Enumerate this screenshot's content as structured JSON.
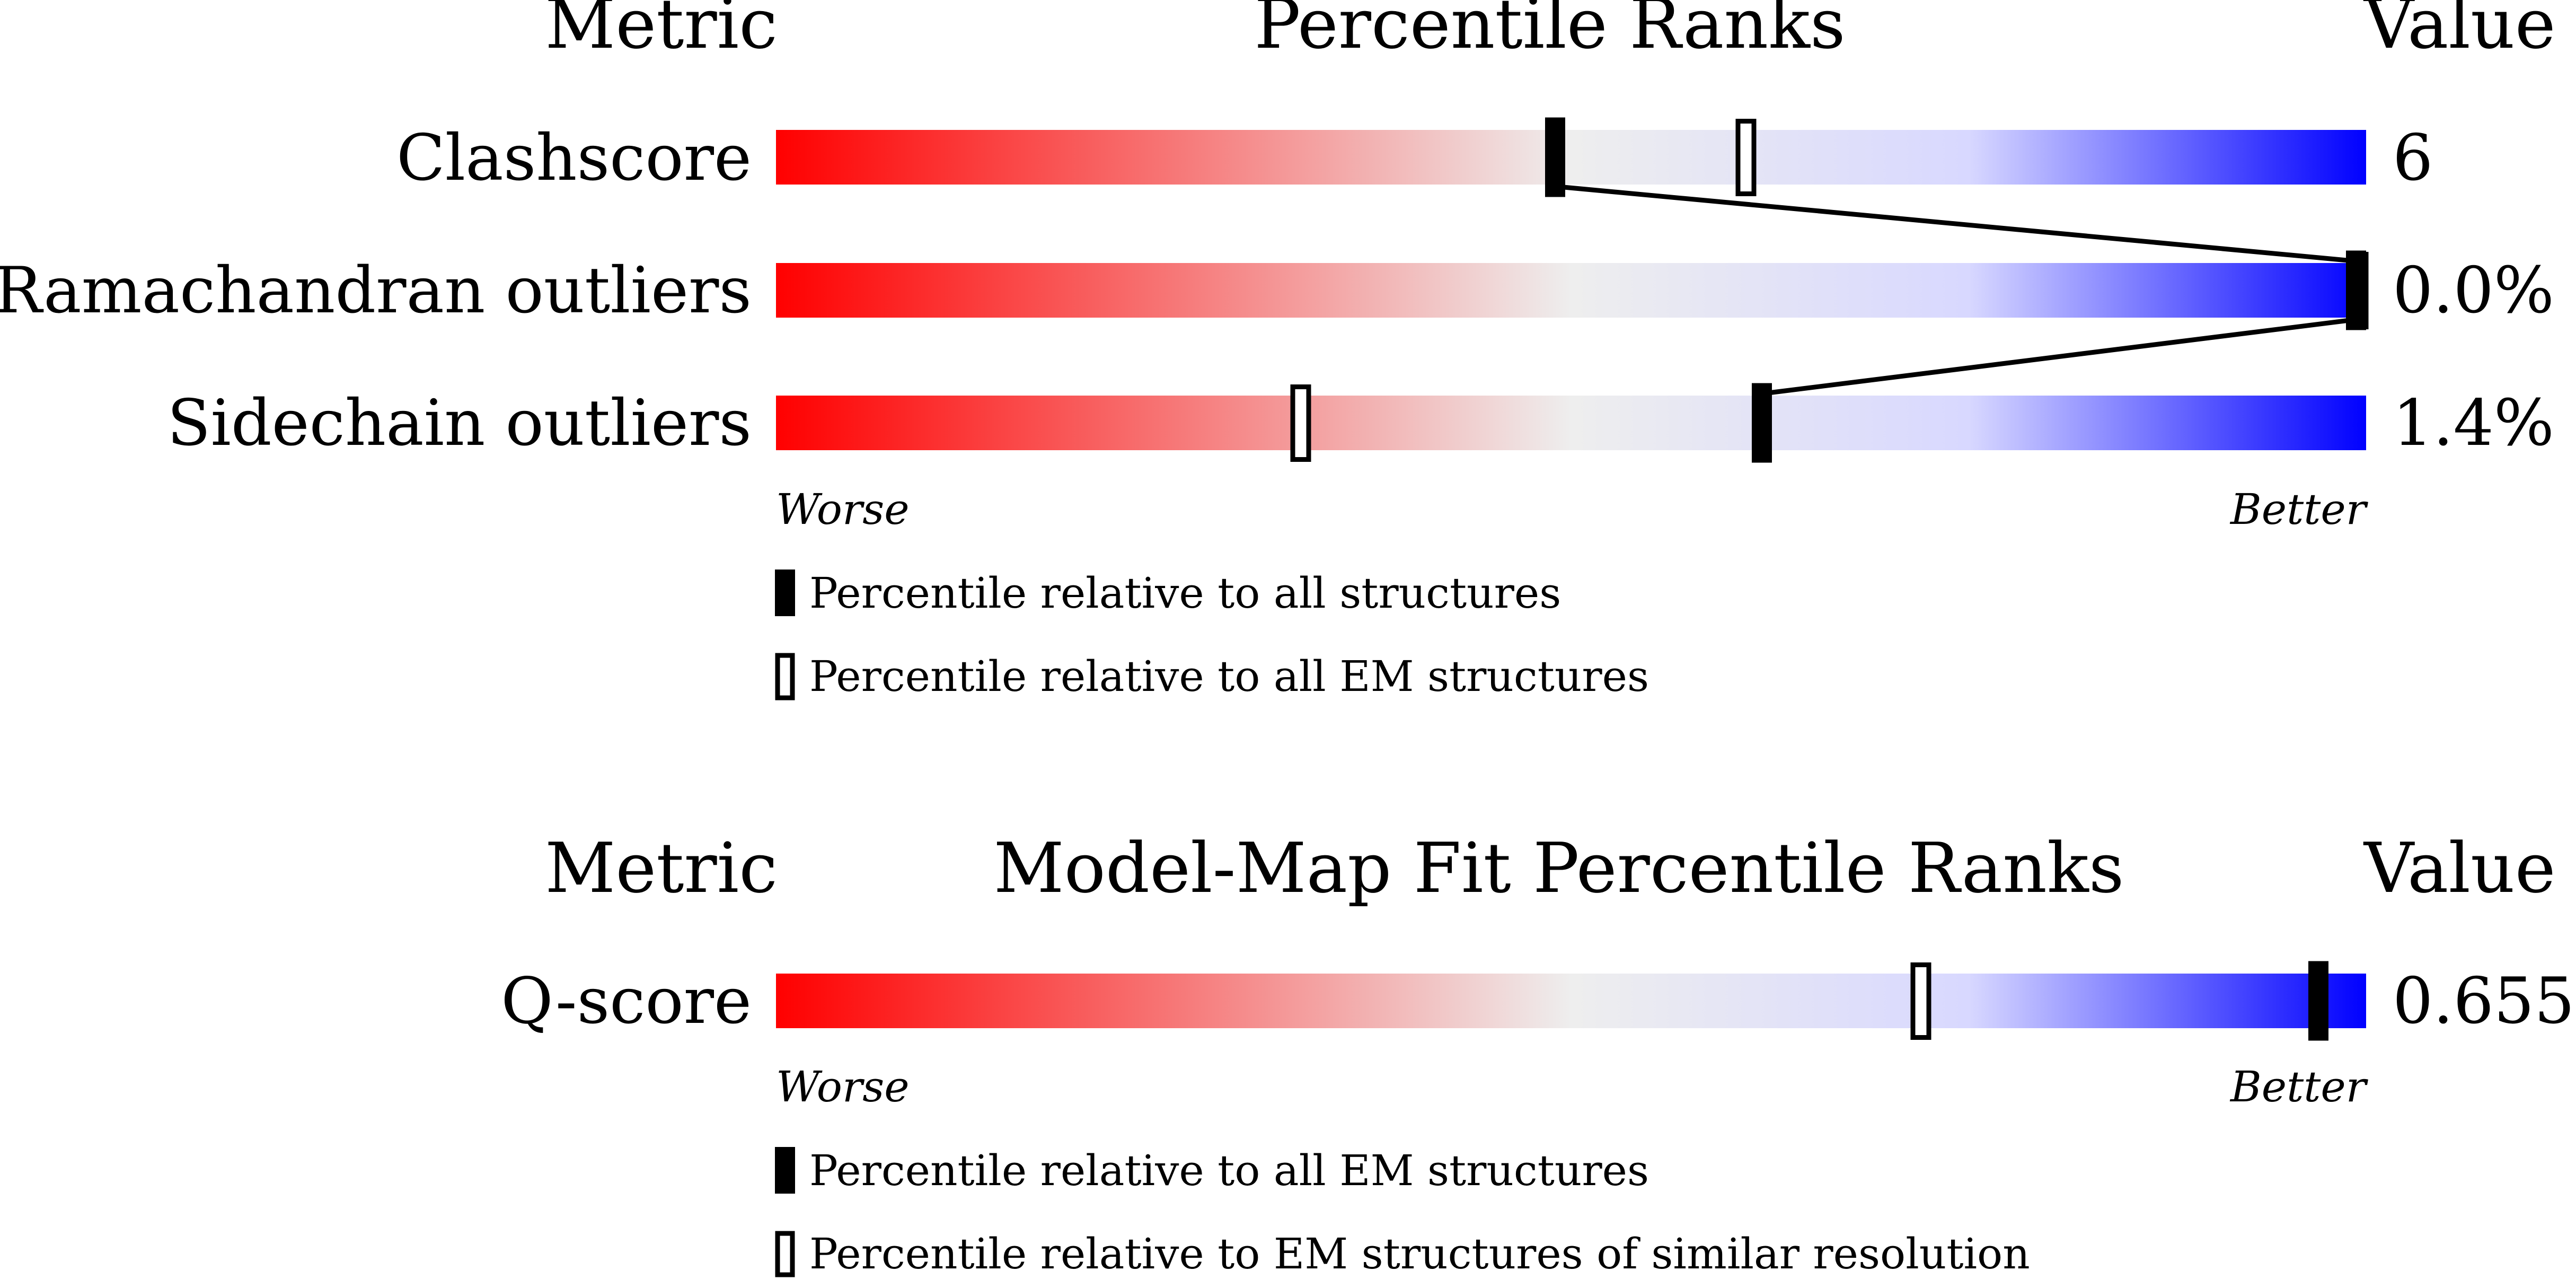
{
  "chart_data": [
    {
      "type": "bar",
      "title": "Percentile Ranks",
      "metric_header": "Metric",
      "value_header": "Value",
      "range": [
        0,
        100
      ],
      "worse_label": "Worse",
      "better_label": "Better",
      "rows": [
        {
          "metric": "Clashscore",
          "value": "6",
          "percentile": 49,
          "percentile_em": 61
        },
        {
          "metric": "Ramachandran outliers",
          "value": "0.0%",
          "percentile": 100,
          "percentile_em": 100
        },
        {
          "metric": "Sidechain outliers",
          "value": "1.4%",
          "percentile": 62,
          "percentile_em": 33
        }
      ],
      "legend": [
        {
          "marker": "filled",
          "label": "Percentile relative to all structures"
        },
        {
          "marker": "open",
          "label": "Percentile relative to all EM structures"
        }
      ]
    },
    {
      "type": "bar",
      "title": "Model-Map Fit Percentile Ranks",
      "metric_header": "Metric",
      "value_header": "Value",
      "range": [
        0,
        100
      ],
      "worse_label": "Worse",
      "better_label": "Better",
      "rows": [
        {
          "metric": "Q-score",
          "value": "0.655",
          "percentile": 97,
          "percentile_em": 72
        }
      ],
      "legend": [
        {
          "marker": "filled",
          "label": "Percentile relative to all EM structures"
        },
        {
          "marker": "open",
          "label": "Percentile relative to EM structures of similar resolution"
        }
      ]
    }
  ],
  "colors": {
    "worse": "#ff0000",
    "neutral": "#eeeeee",
    "light_blue": "#d8d8ff",
    "better": "#0000ff",
    "marker": "#000000"
  }
}
